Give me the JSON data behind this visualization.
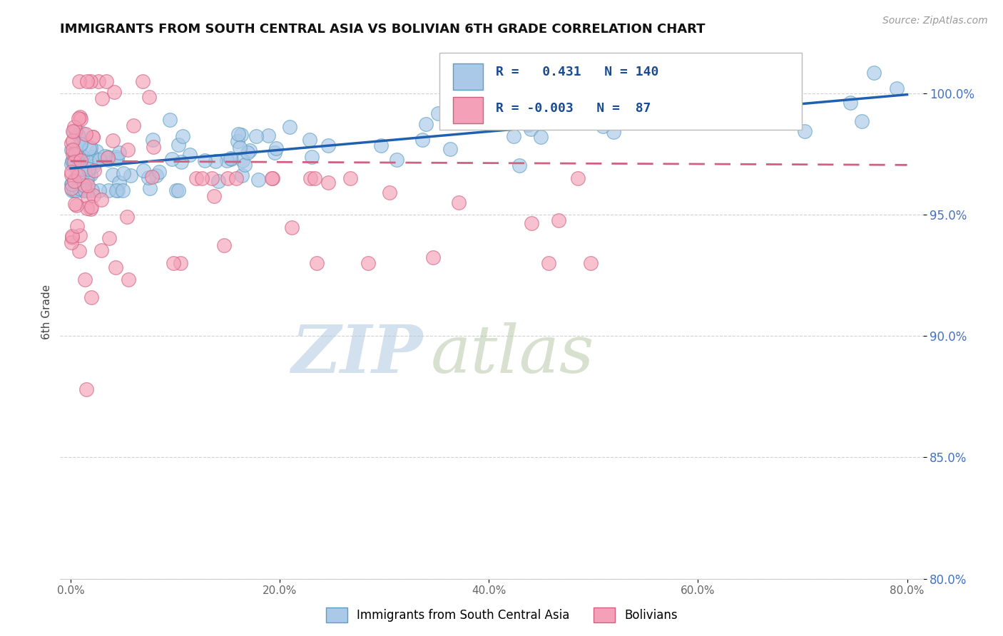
{
  "title": "IMMIGRANTS FROM SOUTH CENTRAL ASIA VS BOLIVIAN 6TH GRADE CORRELATION CHART",
  "source": "Source: ZipAtlas.com",
  "ylabel": "6th Grade",
  "xlim": [
    0.0,
    80.0
  ],
  "ylim": [
    80.0,
    102.0
  ],
  "xtick_vals": [
    0,
    20,
    40,
    60,
    80
  ],
  "ytick_vals": [
    80,
    85,
    90,
    95,
    100
  ],
  "legend_blue_label": "Immigrants from South Central Asia",
  "legend_pink_label": "Bolivians",
  "r_blue": 0.431,
  "n_blue": 140,
  "r_pink": -0.003,
  "n_pink": 87,
  "blue_color": "#aac8e8",
  "pink_color": "#f4a0b8",
  "blue_edge": "#5a9fc0",
  "pink_edge": "#d06080",
  "trend_blue_color": "#2060b0",
  "trend_pink_color": "#d06080",
  "ytick_color": "#4472c4",
  "xtick_color": "#666666",
  "watermark_zip": "ZIP",
  "watermark_atlas": "atlas",
  "watermark_color_zip": "#b8cfe8",
  "watermark_color_atlas": "#c8d8c0",
  "grid_color": "#cccccc",
  "background_color": "#ffffff",
  "blue_trend_intercept": 96.9,
  "blue_trend_slope": 0.038,
  "pink_trend_intercept": 97.2,
  "pink_trend_slope": -0.002
}
